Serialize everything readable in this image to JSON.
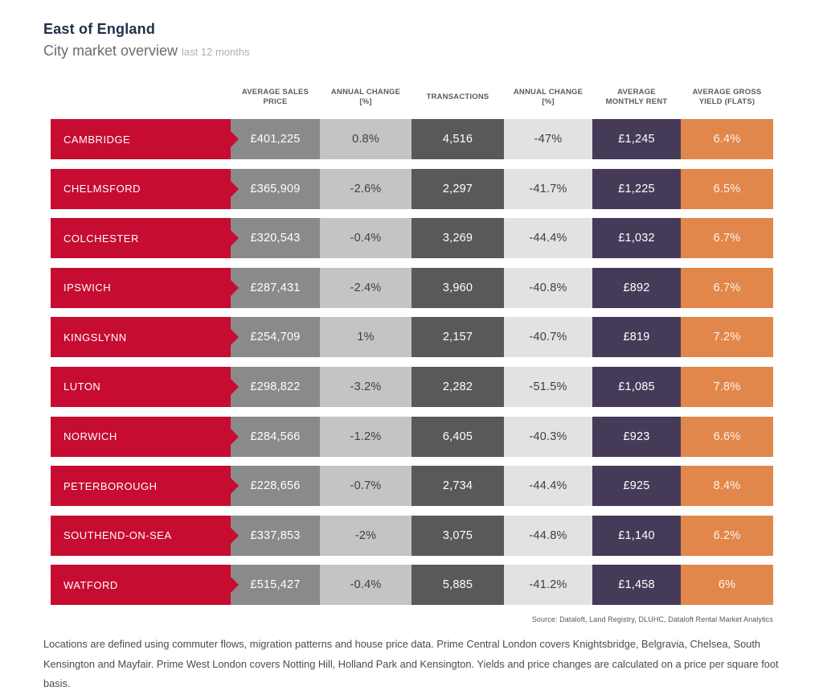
{
  "header": {
    "title": "East of England",
    "subtitle": "City market overview",
    "subtitle_note": "last 12 months"
  },
  "chart_data": {
    "type": "table",
    "title": "East of England — City market overview (last 12 months)",
    "columns": [
      "AVERAGE SALES PRICE",
      "ANNUAL CHANGE [%]",
      "TRANSACTIONS",
      "ANNUAL CHANGE [%]",
      "AVERAGE MONTHLY RENT",
      "AVERAGE GROSS YIELD (FLATS)"
    ],
    "rows": [
      {
        "city": "CAMBRIDGE",
        "sales": "£401,225",
        "change1": "0.8%",
        "transactions": "4,516",
        "change2": "-47%",
        "rent": "£1,245",
        "yield": "6.4%"
      },
      {
        "city": "CHELMSFORD",
        "sales": "£365,909",
        "change1": "-2.6%",
        "transactions": "2,297",
        "change2": "-41.7%",
        "rent": "£1,225",
        "yield": "6.5%"
      },
      {
        "city": "COLCHESTER",
        "sales": "£320,543",
        "change1": "-0.4%",
        "transactions": "3,269",
        "change2": "-44.4%",
        "rent": "£1,032",
        "yield": "6.7%"
      },
      {
        "city": "IPSWICH",
        "sales": "£287,431",
        "change1": "-2.4%",
        "transactions": "3,960",
        "change2": "-40.8%",
        "rent": "£892",
        "yield": "6.7%"
      },
      {
        "city": "KINGSLYNN",
        "sales": "£254,709",
        "change1": "1%",
        "transactions": "2,157",
        "change2": "-40.7%",
        "rent": "£819",
        "yield": "7.2%"
      },
      {
        "city": "LUTON",
        "sales": "£298,822",
        "change1": "-3.2%",
        "transactions": "2,282",
        "change2": "-51.5%",
        "rent": "£1,085",
        "yield": "7.8%"
      },
      {
        "city": "NORWICH",
        "sales": "£284,566",
        "change1": "-1.2%",
        "transactions": "6,405",
        "change2": "-40.3%",
        "rent": "£923",
        "yield": "6.6%"
      },
      {
        "city": "PETERBOROUGH",
        "sales": "£228,656",
        "change1": "-0.7%",
        "transactions": "2,734",
        "change2": "-44.4%",
        "rent": "£925",
        "yield": "8.4%"
      },
      {
        "city": "SOUTHEND-ON-SEA",
        "sales": "£337,853",
        "change1": "-2%",
        "transactions": "3,075",
        "change2": "-44.8%",
        "rent": "£1,140",
        "yield": "6.2%"
      },
      {
        "city": "WATFORD",
        "sales": "£515,427",
        "change1": "-0.4%",
        "transactions": "5,885",
        "change2": "-41.2%",
        "rent": "£1,458",
        "yield": "6%"
      }
    ]
  },
  "source": "Source: Dataloft, Land Registry, DLUHC, Dataloft Rental Market Analytics",
  "footnote": "Locations are defined using commuter flows, migration patterns and house price data. Prime Central London covers Knightsbridge, Belgravia, Chelsea, South Kensington and Mayfair. Prime West London covers Notting Hill, Holland Park and Kensington. Yields and price changes are calculated on a price per square foot basis.",
  "colors": {
    "city_red": "#c60c30",
    "sales_gray": "#8a8a8a",
    "change_light_gray": "#c4c4c5",
    "transactions_dark_gray": "#59595b",
    "change_lighter_gray": "#e2e2e3",
    "rent_purple": "#463a59",
    "yield_orange": "#e2874b"
  }
}
